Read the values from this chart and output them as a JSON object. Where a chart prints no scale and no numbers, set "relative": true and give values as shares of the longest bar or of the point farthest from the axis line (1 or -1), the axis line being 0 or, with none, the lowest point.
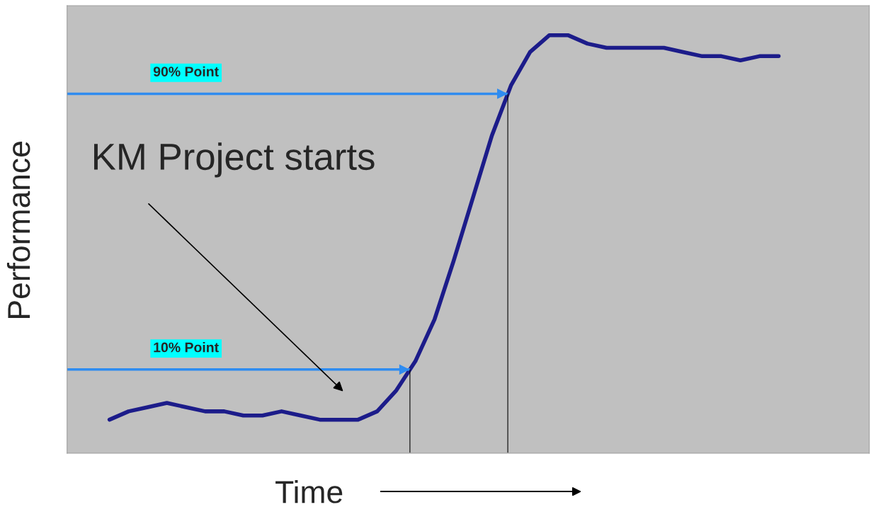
{
  "chart_data": {
    "type": "line",
    "relative": true,
    "xlabel": "Time",
    "ylabel": "Performance",
    "categories": [
      null,
      null,
      null,
      null,
      null,
      null,
      null,
      null,
      null,
      null,
      null,
      null,
      null,
      null,
      null,
      null,
      null,
      null,
      null,
      null,
      null,
      null,
      null,
      null,
      null,
      null,
      null,
      null,
      null,
      null,
      null,
      null,
      null,
      null,
      null,
      null
    ],
    "series": [
      {
        "color": "#1c1c8a",
        "values": [
          0.08,
          0.1,
          0.11,
          0.12,
          0.11,
          0.1,
          0.1,
          0.09,
          0.09,
          0.1,
          0.09,
          0.08,
          0.08,
          0.08,
          0.1,
          0.15,
          0.22,
          0.32,
          0.46,
          0.61,
          0.76,
          0.88,
          0.96,
          1,
          1,
          0.98,
          0.97,
          0.97,
          0.97,
          0.97,
          0.96,
          0.95,
          0.95,
          0.94,
          0.95,
          0.95
        ]
      }
    ],
    "ref_lines": [
      {
        "axis": "y",
        "value": 0.86,
        "label": "90% Point",
        "color": "#2f8cf0"
      },
      {
        "axis": "y",
        "value": 0.2,
        "label": "10% Point",
        "color": "#2f8cf0"
      }
    ],
    "annotations": [
      "KM Project starts"
    ],
    "grid": false,
    "legend": false
  }
}
